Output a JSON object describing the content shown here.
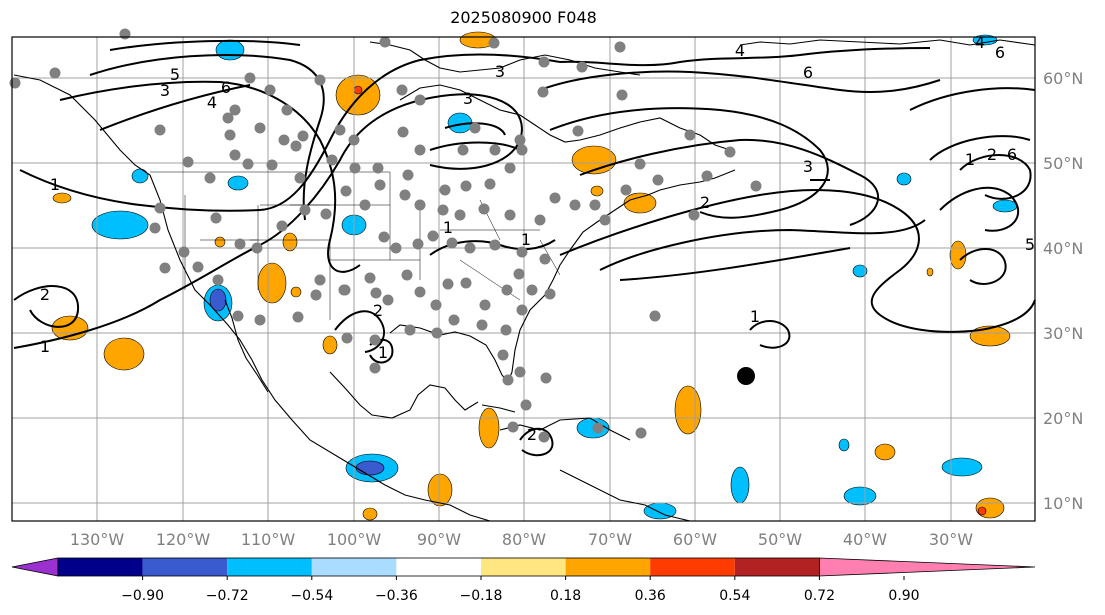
{
  "title": "2025080900 F048",
  "map": {
    "lat_labels": [
      "60°N",
      "50°N",
      "40°N",
      "30°N",
      "20°N",
      "10°N"
    ],
    "lon_labels": [
      "130°W",
      "120°W",
      "110°W",
      "100°W",
      "90°W",
      "80°W",
      "70°W",
      "60°W",
      "50°W",
      "40°W",
      "30°W"
    ],
    "contour_labels": [
      "1",
      "1",
      "2",
      "3",
      "4",
      "6",
      "5",
      "3",
      "4",
      "6",
      "2",
      "3",
      "4",
      "6",
      "1",
      "2",
      "6",
      "5",
      "2",
      "1",
      "1",
      "1",
      "2",
      "1",
      "3"
    ],
    "colors": {
      "land_outline": "#000000",
      "grid": "#a0a0a0",
      "station": "#808080",
      "marker": "#000000"
    }
  },
  "colorbar": {
    "labels": [
      "−0.90",
      "−0.72",
      "−0.54",
      "−0.36",
      "−0.18",
      "0.18",
      "0.36",
      "0.54",
      "0.72",
      "0.90"
    ],
    "colors": [
      "#9b30d0",
      "#00008b",
      "#3a5bd0",
      "#00bfff",
      "#aadcff",
      "#ffffff",
      "#ffe680",
      "#ffa500",
      "#ff3c00",
      "#b22222",
      "#ff80b0"
    ]
  }
}
